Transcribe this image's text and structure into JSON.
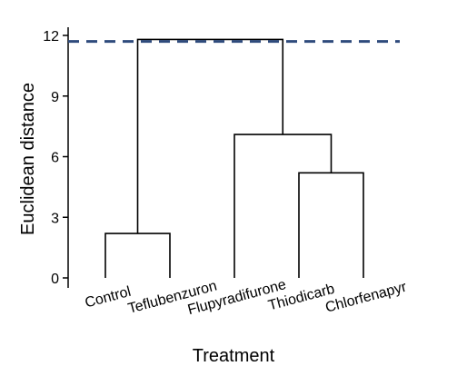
{
  "chart_data": {
    "type": "dendrogram",
    "title": "",
    "xlabel": "Treatment",
    "ylabel": "Euclidean distance",
    "ylim": [
      0,
      12.5
    ],
    "yticks": [
      0,
      3,
      6,
      9,
      12
    ],
    "leaves": [
      "Control",
      "Teflubenzuron",
      "Flupyradifurone",
      "Thiodicarb",
      "Chlorfenapyr"
    ],
    "merges": [
      {
        "left": "Control",
        "right": "Teflubenzuron",
        "height": 2.2
      },
      {
        "left": "Thiodicarb",
        "right": "Chlorfenapyr",
        "height": 5.2
      },
      {
        "left": "Flupyradifurone",
        "right": "Thiodicarb+Chlorfenapyr",
        "height": 7.1
      },
      {
        "left": "Control+Teflubenzuron",
        "right": "Flupyradifurone+Thiodicarb+Chlorfenapyr",
        "height": 11.8
      }
    ],
    "cut_line": {
      "value": 11.7,
      "style": "dashed",
      "color": "#2f4b7c"
    },
    "line_color": "#000000"
  }
}
